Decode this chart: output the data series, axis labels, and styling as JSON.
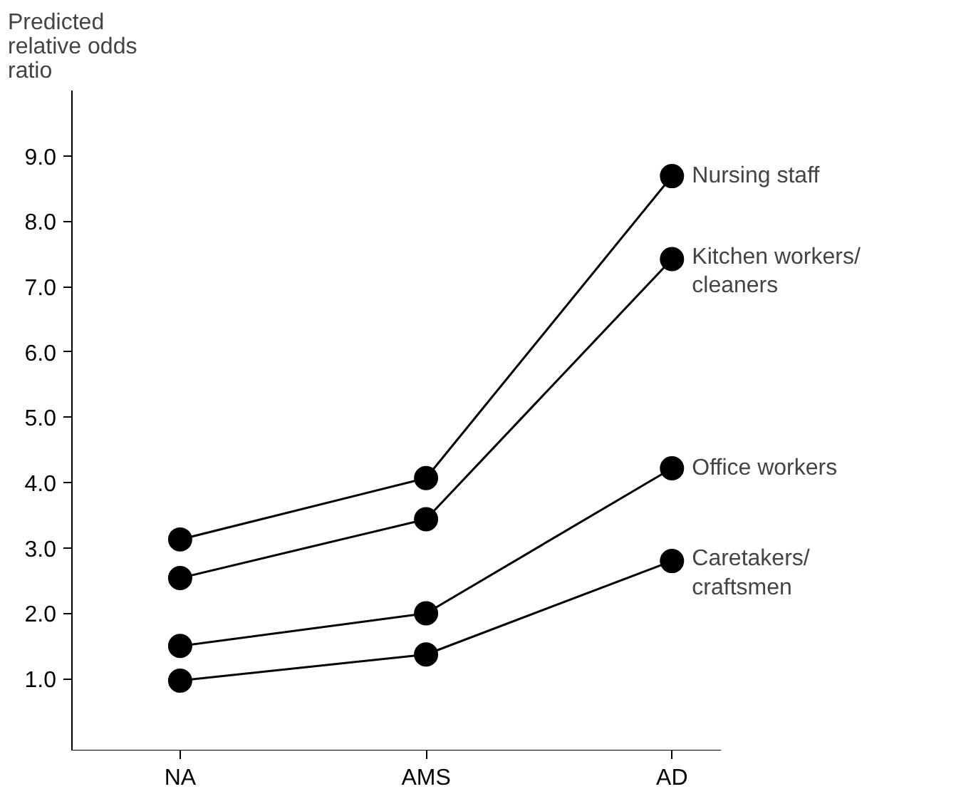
{
  "chart_data": {
    "type": "line",
    "ylabel": "Predicted relative odds ratio",
    "categories": [
      "NA",
      "AMS",
      "AD"
    ],
    "series": [
      {
        "name": "Nursing staff",
        "color": "#000000",
        "values": [
          3.13,
          4.07,
          8.69
        ]
      },
      {
        "name": "Kitchen workers/ cleaners",
        "color": "#000000",
        "values": [
          2.54,
          3.44,
          7.42
        ]
      },
      {
        "name": "Office workers",
        "color": "#000000",
        "values": [
          1.5,
          2.0,
          4.22
        ]
      },
      {
        "name": "Caretakers/ craftsmen",
        "color": "#000000",
        "values": [
          0.97,
          1.37,
          2.8
        ]
      }
    ],
    "ylim": [
      -0.1,
      10.0
    ],
    "yticks": [
      {
        "value": 1,
        "label": "1.0"
      },
      {
        "value": 2,
        "label": "2.0"
      },
      {
        "value": 3,
        "label": "3.0"
      },
      {
        "value": 4,
        "label": "4.0"
      },
      {
        "value": 5,
        "label": "5.0"
      },
      {
        "value": 6,
        "label": "6.0"
      },
      {
        "value": 7,
        "label": "7.0"
      },
      {
        "value": 8,
        "label": "8.0"
      },
      {
        "value": 9,
        "label": "9.0"
      }
    ],
    "grid": false,
    "legend": false,
    "marker": "circle",
    "line_style": "solid"
  }
}
